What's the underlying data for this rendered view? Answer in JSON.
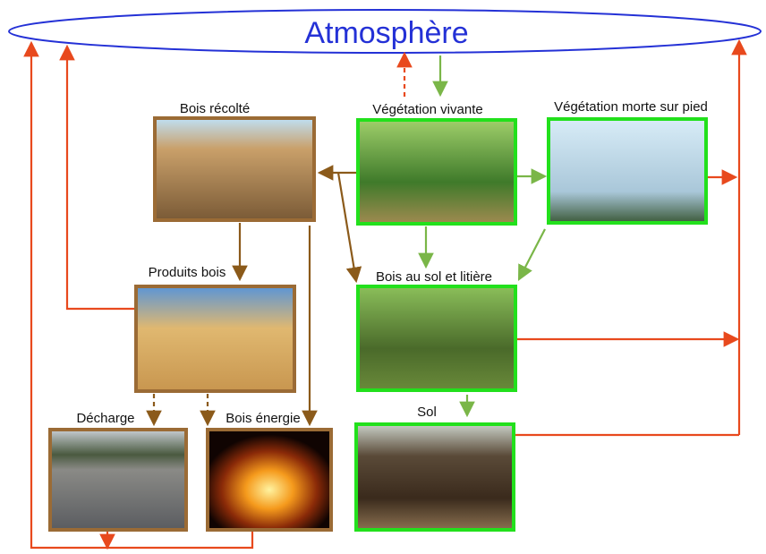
{
  "title": "Atmosphère",
  "nodes": [
    {
      "label": "Bois récolté"
    },
    {
      "label": "Végétation vivante"
    },
    {
      "label": "Végétation morte sur pied"
    },
    {
      "label": "Produits bois"
    },
    {
      "label": "Bois au sol et litière"
    },
    {
      "label": "Décharge"
    },
    {
      "label": "Bois énergie"
    },
    {
      "label": "Sol"
    }
  ]
}
